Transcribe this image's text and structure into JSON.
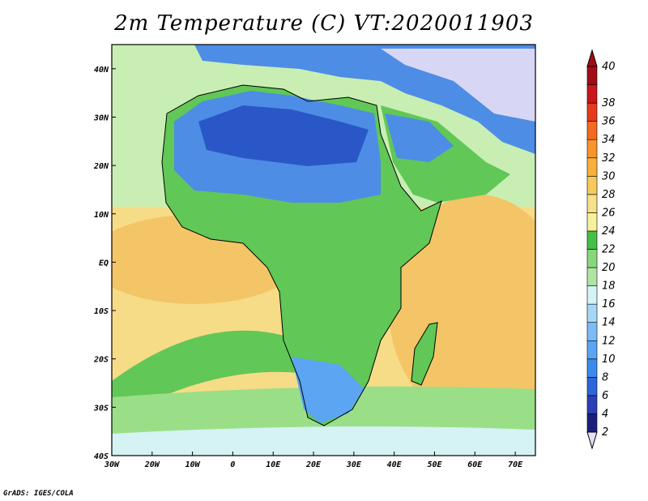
{
  "title": "2m Temperature (C) VT:2020011903",
  "credit": "GrADS: IGES/COLA",
  "map": {
    "region": "Africa",
    "lon_range": [
      -30,
      75
    ],
    "lat_range": [
      -40,
      45
    ],
    "lon_ticks": [
      "30W",
      "20W",
      "10W",
      "0",
      "10E",
      "20E",
      "30E",
      "40E",
      "50E",
      "60E",
      "70E"
    ],
    "lat_ticks": [
      "40S",
      "30S",
      "20S",
      "10S",
      "EQ",
      "10N",
      "20N",
      "30N",
      "40N"
    ],
    "colors": {
      "ocean_warm": "#f3c566",
      "ocean_mid": "#f6dc87",
      "ocean_cool": "#c9eeb3",
      "land_warm": "#61c757",
      "land_cool": "#4d8de6",
      "land_cold": "#2a57c7",
      "snow": "#d7d7f5"
    }
  },
  "colorbar": {
    "labels": [
      "2",
      "4",
      "6",
      "8",
      "10",
      "12",
      "14",
      "16",
      "18",
      "20",
      "22",
      "24",
      "26",
      "28",
      "30",
      "32",
      "34",
      "36",
      "38",
      "40"
    ],
    "colors": [
      "#1c1f7a",
      "#2a3fb8",
      "#2c66d9",
      "#3c8bec",
      "#5ba5f2",
      "#7bbcf4",
      "#a6d7f6",
      "#d5f2f4",
      "#aee5a3",
      "#89d77c",
      "#45c149",
      "#f6f19a",
      "#f6e08a",
      "#f6c95a",
      "#f8b03e",
      "#f7952b",
      "#f26b22",
      "#e63b1b",
      "#c8181b",
      "#a10d17"
    ],
    "min_color": "#e3e3f7"
  }
}
